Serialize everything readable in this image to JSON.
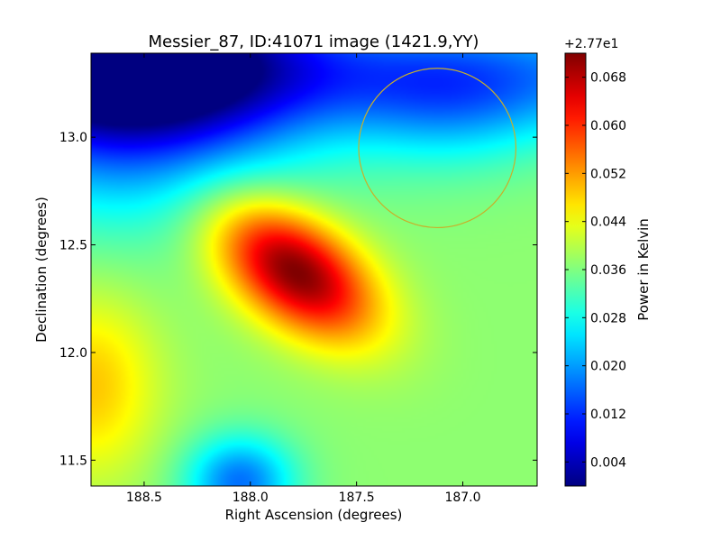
{
  "chart_data": {
    "type": "heatmap",
    "title": "Messier_87, ID:41071 image (1421.9,YY)",
    "xlabel": "Right Ascension (degrees)",
    "ylabel": "Declination (degrees)",
    "xlim": [
      188.75,
      186.65
    ],
    "ylim": [
      11.38,
      13.39
    ],
    "x_ticks": [
      {
        "value": 188.5,
        "label": "188.5"
      },
      {
        "value": 188.0,
        "label": "188.0"
      },
      {
        "value": 187.5,
        "label": "187.5"
      },
      {
        "value": 187.0,
        "label": "187.0"
      }
    ],
    "y_ticks": [
      {
        "value": 11.5,
        "label": "11.5"
      },
      {
        "value": 12.0,
        "label": "12.0"
      },
      {
        "value": 12.5,
        "label": "12.5"
      },
      {
        "value": 13.0,
        "label": "13.0"
      }
    ],
    "colormap": "jet",
    "colorbar": {
      "label": "Power in Kelvin",
      "offset_label": "+2.77e1",
      "range": [
        0.0,
        0.072
      ],
      "ticks": [
        {
          "value": 0.004,
          "label": "0.004"
        },
        {
          "value": 0.012,
          "label": "0.012"
        },
        {
          "value": 0.02,
          "label": "0.020"
        },
        {
          "value": 0.028,
          "label": "0.028"
        },
        {
          "value": 0.036,
          "label": "0.036"
        },
        {
          "value": 0.044,
          "label": "0.044"
        },
        {
          "value": 0.052,
          "label": "0.052"
        },
        {
          "value": 0.06,
          "label": "0.060"
        },
        {
          "value": 0.068,
          "label": "0.068"
        }
      ]
    },
    "features": [
      {
        "type": "peak",
        "ra": 187.79,
        "dec": 12.38,
        "value": 0.071
      },
      {
        "type": "minimum",
        "ra": 188.72,
        "dec": 13.35,
        "value": 0.0
      },
      {
        "type": "local_max",
        "ra": 188.72,
        "dec": 11.85,
        "value": 0.049
      },
      {
        "type": "local_min",
        "ra": 188.05,
        "dec": 11.45,
        "value": 0.017
      }
    ],
    "circle": {
      "ra_center": 187.12,
      "dec_center": 12.95,
      "radius_deg": 0.37,
      "color": "#c8b02a"
    }
  }
}
